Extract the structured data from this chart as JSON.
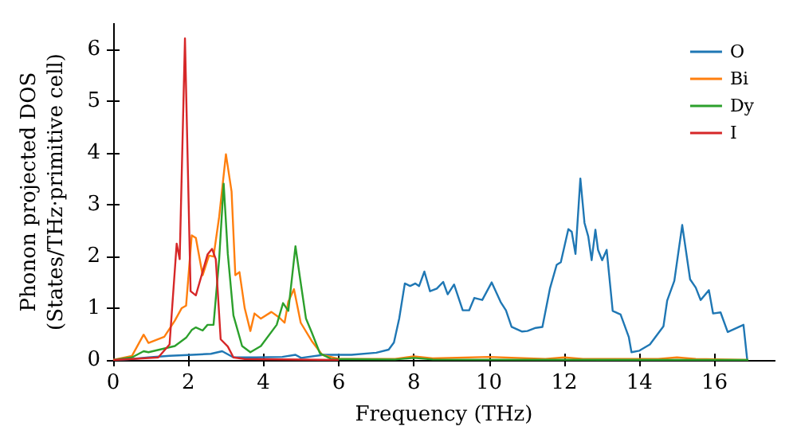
{
  "chart_data": {
    "type": "line",
    "xlabel": "Frequency (THz)",
    "ylabel": "Phonon projected DOS\n(States/THz·primitive cell)",
    "xlim": [
      0,
      17.6
    ],
    "ylim": [
      0,
      6.5
    ],
    "xticks": [
      0,
      2,
      4,
      6,
      8,
      10,
      12,
      14,
      16
    ],
    "yticks": [
      0,
      1,
      2,
      3,
      4,
      5,
      6
    ],
    "legend": "top right",
    "series": [
      {
        "name": "O",
        "color": "#1f77b4",
        "x": [
          0,
          0.5,
          0.94,
          1.5,
          2.1,
          2.6,
          2.9,
          3.2,
          3.8,
          4.5,
          4.85,
          5.0,
          5.6,
          6.34,
          7.0,
          7.33,
          7.47,
          7.61,
          7.76,
          7.9,
          8.04,
          8.14,
          8.28,
          8.43,
          8.61,
          8.78,
          8.9,
          9.07,
          9.3,
          9.47,
          9.61,
          9.82,
          10.07,
          10.31,
          10.45,
          10.6,
          10.88,
          11.02,
          11.24,
          11.42,
          11.62,
          11.8,
          11.91,
          12.11,
          12.2,
          12.3,
          12.43,
          12.54,
          12.64,
          12.73,
          12.83,
          12.9,
          13.01,
          13.13,
          13.29,
          13.5,
          13.72,
          13.79,
          14.0,
          14.28,
          14.64,
          14.74,
          14.93,
          15.14,
          15.35,
          15.5,
          15.63,
          15.85,
          15.96,
          16.16,
          16.35,
          16.77,
          16.87
        ],
        "values": [
          0,
          0.02,
          0.05,
          0.08,
          0.1,
          0.12,
          0.17,
          0.05,
          0.05,
          0.06,
          0.1,
          0.04,
          0.1,
          0.1,
          0.14,
          0.2,
          0.34,
          0.8,
          1.48,
          1.43,
          1.48,
          1.43,
          1.71,
          1.33,
          1.38,
          1.51,
          1.27,
          1.46,
          0.96,
          0.96,
          1.2,
          1.16,
          1.5,
          1.12,
          0.96,
          0.64,
          0.55,
          0.56,
          0.62,
          0.64,
          1.38,
          1.84,
          1.89,
          2.53,
          2.48,
          2.05,
          3.51,
          2.65,
          2.39,
          1.93,
          2.52,
          2.13,
          1.93,
          2.13,
          0.95,
          0.88,
          0.44,
          0.15,
          0.18,
          0.3,
          0.65,
          1.15,
          1.53,
          2.61,
          1.56,
          1.4,
          1.16,
          1.35,
          0.9,
          0.92,
          0.54,
          0.68,
          0
        ]
      },
      {
        "name": "Bi",
        "color": "#ff7f0e",
        "x": [
          0,
          0.5,
          0.81,
          0.94,
          1.36,
          1.64,
          1.82,
          1.94,
          2.09,
          2.2,
          2.38,
          2.55,
          2.67,
          2.82,
          3.0,
          3.15,
          3.25,
          3.36,
          3.5,
          3.65,
          3.76,
          3.93,
          4.21,
          4.42,
          4.56,
          4.66,
          4.81,
          4.99,
          5.28,
          5.56,
          6.0,
          7.5,
          8.0,
          8.5,
          10.0,
          11.5,
          12.0,
          12.5,
          14.5,
          15.0,
          15.5,
          16.9
        ],
        "values": [
          0,
          0.08,
          0.49,
          0.33,
          0.45,
          0.76,
          1.0,
          1.05,
          2.41,
          2.36,
          1.64,
          2.02,
          2.0,
          2.77,
          3.98,
          3.26,
          1.64,
          1.7,
          1.0,
          0.56,
          0.9,
          0.8,
          0.93,
          0.82,
          0.72,
          1.13,
          1.37,
          0.72,
          0.37,
          0.1,
          0.02,
          0.02,
          0.07,
          0.03,
          0.06,
          0.02,
          0.05,
          0.02,
          0.02,
          0.05,
          0.02,
          0
        ]
      },
      {
        "name": "Dy",
        "color": "#2ca02c",
        "x": [
          0,
          0.5,
          0.81,
          0.94,
          1.64,
          1.94,
          2.09,
          2.2,
          2.38,
          2.51,
          2.67,
          2.82,
          2.94,
          3.05,
          3.2,
          3.43,
          3.65,
          3.93,
          4.35,
          4.52,
          4.66,
          4.85,
          4.96,
          5.13,
          5.28,
          5.5,
          5.8,
          7.5,
          8.0,
          8.5,
          16.9
        ],
        "values": [
          0,
          0.05,
          0.17,
          0.15,
          0.27,
          0.43,
          0.58,
          0.63,
          0.57,
          0.68,
          0.68,
          1.95,
          3.41,
          2.05,
          0.86,
          0.27,
          0.15,
          0.27,
          0.68,
          1.1,
          0.95,
          2.2,
          1.64,
          0.8,
          0.54,
          0.13,
          0.02,
          0.01,
          0.04,
          0.01,
          0
        ]
      },
      {
        "name": "I",
        "color": "#d62728",
        "x": [
          0,
          0.5,
          1.2,
          1.5,
          1.69,
          1.77,
          1.91,
          2.06,
          2.2,
          2.51,
          2.63,
          2.73,
          2.86,
          3.05,
          3.2,
          3.5,
          6.0
        ],
        "values": [
          0,
          0.02,
          0.05,
          0.3,
          2.25,
          1.95,
          6.22,
          1.33,
          1.25,
          2.04,
          2.15,
          1.95,
          0.4,
          0.26,
          0.05,
          0.02,
          0
        ]
      }
    ]
  }
}
